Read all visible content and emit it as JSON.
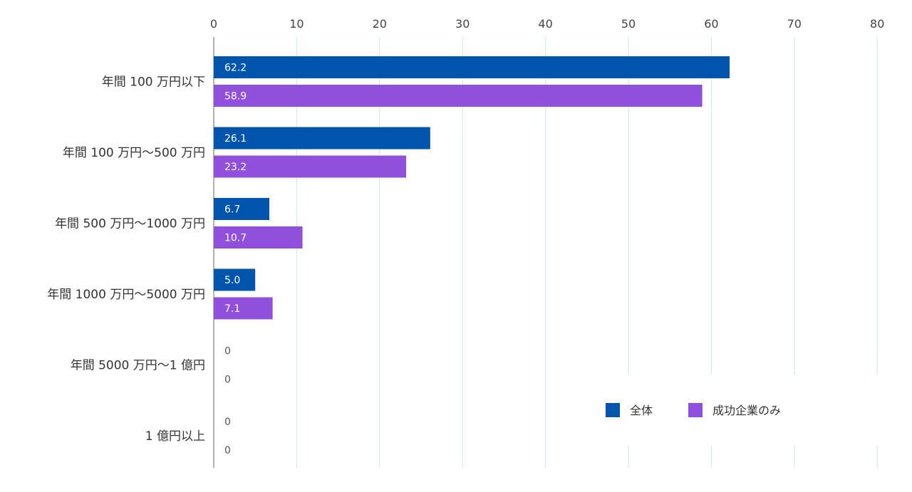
{
  "chart_data": {
    "type": "bar",
    "orientation": "horizontal",
    "categories": [
      "年間 100 万円以下",
      "年間 100 万円〜500 万円",
      "年間 500 万円〜1000 万円",
      "年間 1000 万円〜5000 万円",
      "年間 5000 万円〜1 億円",
      "1 億円以上"
    ],
    "series": [
      {
        "name": "全体",
        "values": [
          62.2,
          26.1,
          6.7,
          5.0,
          0,
          0
        ],
        "labels": [
          "62.2",
          "26.1",
          "6.7",
          "5.0",
          "0",
          "0"
        ],
        "color": "#0055aa"
      },
      {
        "name": "成功企業のみ",
        "values": [
          58.9,
          23.2,
          10.7,
          7.1,
          0,
          0
        ],
        "labels": [
          "58.9",
          "23.2",
          "10.7",
          "7.1",
          "0",
          "0"
        ],
        "color": "#9150dc"
      }
    ],
    "xlim": [
      0,
      80
    ],
    "xticks": [
      "0",
      "10",
      "20",
      "30",
      "40",
      "50",
      "60",
      "70",
      "80"
    ],
    "x_axis_position": "top",
    "grid": true,
    "grid_color": "#cde6f0",
    "legend_position": "bottom-right",
    "title": "",
    "xlabel": "",
    "ylabel": ""
  }
}
